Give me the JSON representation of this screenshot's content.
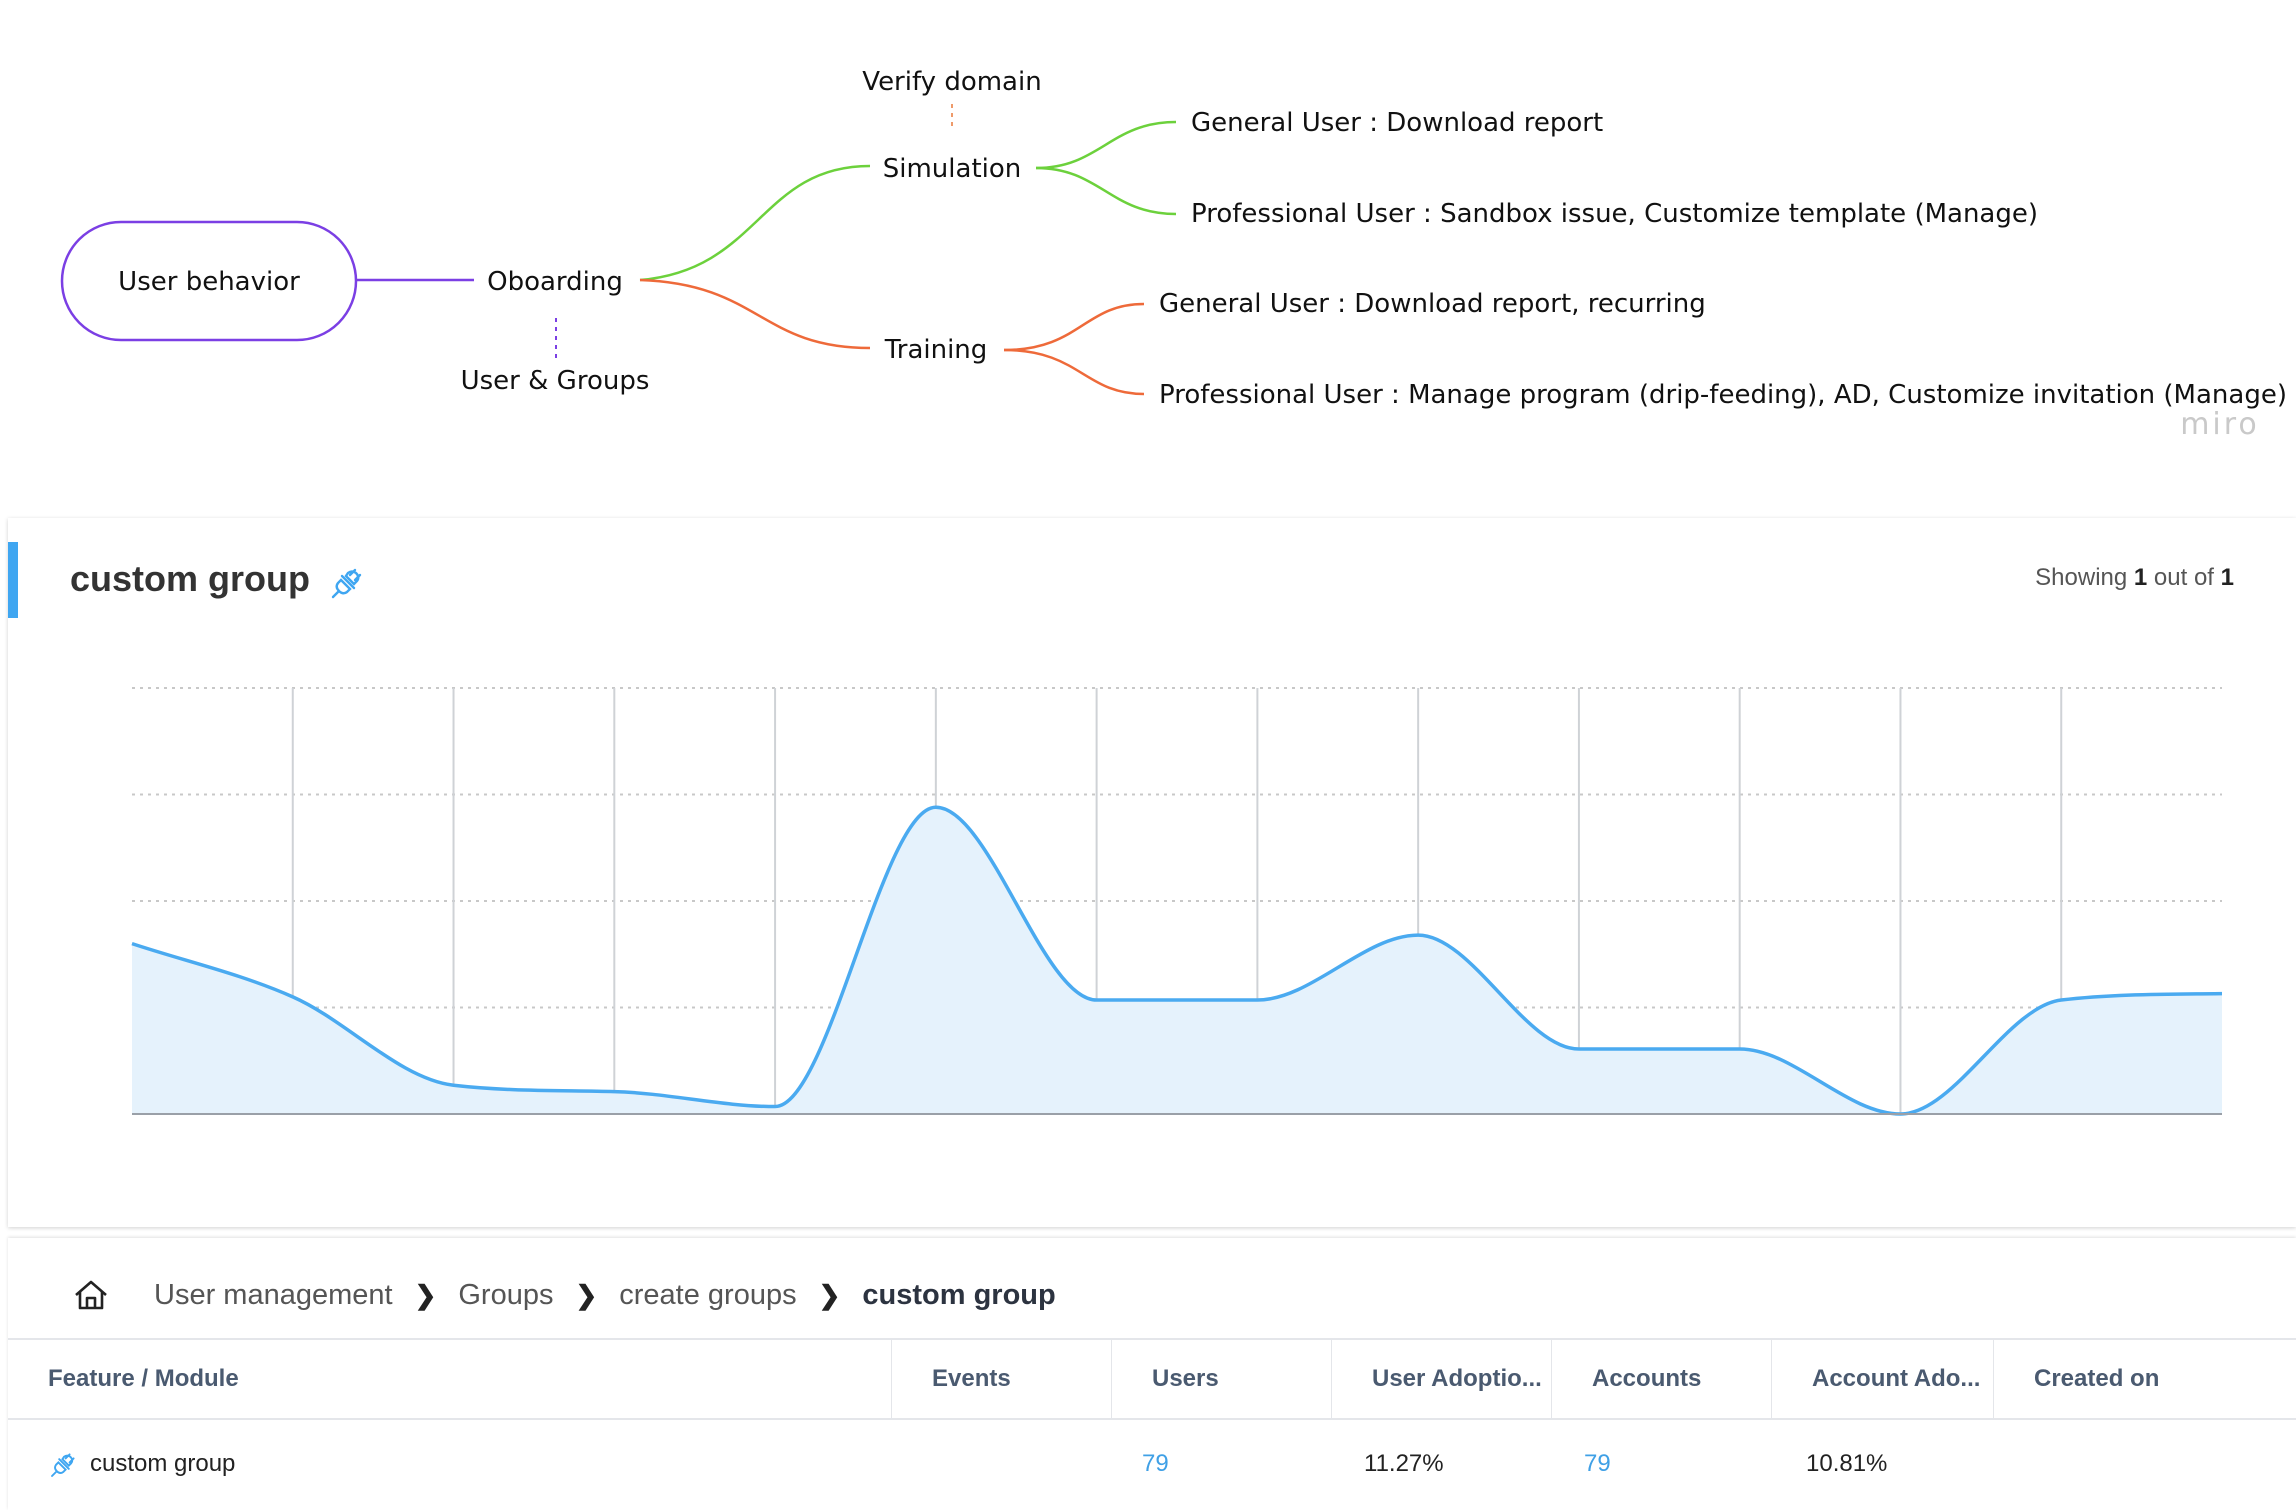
{
  "mindmap": {
    "root": "User behavior",
    "onboarding": "Oboarding",
    "user_groups": "User & Groups",
    "verify_domain": "Verify domain",
    "simulation": "Simulation",
    "training": "Training",
    "sim_general": "General User : Download report",
    "sim_professional": "Professional User : Sandbox issue, Customize template (Manage)",
    "train_general": "General User : Download report, recurring",
    "train_professional": "Professional User : Manage program (drip-feeding), AD, Customize invitation (Manage)",
    "watermark": "miro",
    "colors": {
      "root": "#7b3fe4",
      "simulation": "#6cd13c",
      "training": "#ee6a3a"
    }
  },
  "card": {
    "title": "custom group",
    "showing_prefix": "Showing",
    "showing_count": "1",
    "showing_mid": "out of",
    "showing_total": "1",
    "accent_color": "#3fa6f1",
    "title_icon": "plug-icon"
  },
  "chart_data": {
    "type": "area",
    "x": [
      0,
      1,
      2,
      3,
      4,
      5,
      6,
      7,
      8,
      9,
      10,
      11,
      12,
      13
    ],
    "values": [
      1.6,
      1.1,
      0.27,
      0.21,
      0.07,
      2.88,
      1.07,
      1.07,
      1.68,
      0.61,
      0.61,
      0.0,
      1.07,
      1.13
    ],
    "ylim": [
      0,
      4
    ],
    "gridlines_y": [
      1,
      2,
      3,
      4
    ],
    "grid": true,
    "color": "#4aaaf0",
    "fill": "#e5f2fc"
  },
  "breadcrumb": {
    "home_icon": "home-icon",
    "items": [
      "User management",
      "Groups",
      "create groups"
    ],
    "current": "custom group",
    "separator": "❯"
  },
  "table": {
    "columns": [
      "Feature / Module",
      "Events",
      "Users",
      "User Adoptio...",
      "Accounts",
      "Account Ado...",
      "Created on"
    ],
    "rows": [
      {
        "feature": "custom group",
        "events": "",
        "users": "79",
        "user_adoption": "11.27%",
        "accounts": "79",
        "account_adoption": "10.81%",
        "created_on": "",
        "icon": "plug-icon"
      }
    ]
  }
}
